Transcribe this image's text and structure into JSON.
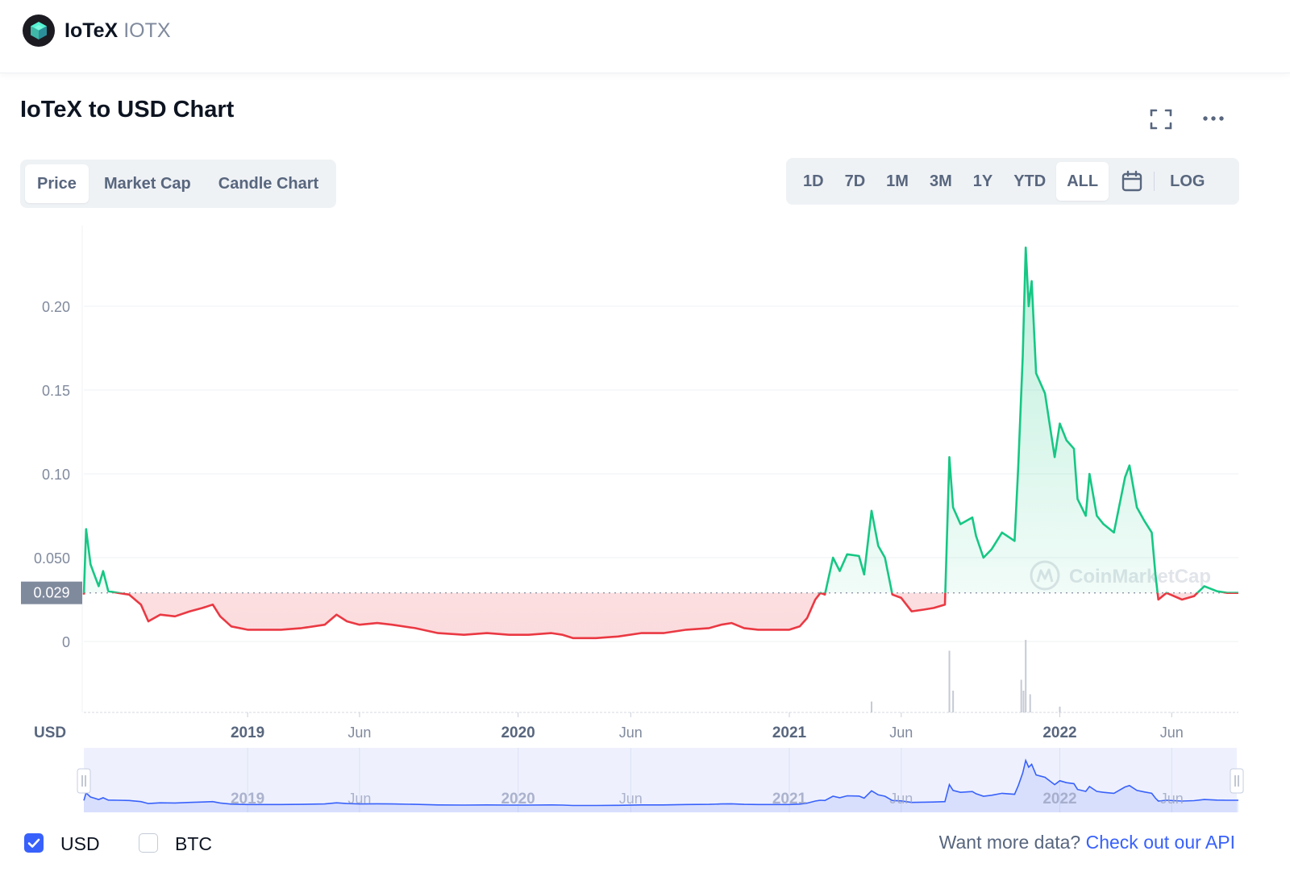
{
  "header": {
    "coin_name": "IoTeX",
    "coin_symbol": "IOTX",
    "logo_icon": "iotex-cube-logo-icon"
  },
  "chart_section": {
    "title": "IoTeX to USD Chart",
    "fullscreen_icon": "fullscreen-icon",
    "more_icon": "more-horizontal-icon"
  },
  "tabs": [
    {
      "label": "Price",
      "active": true
    },
    {
      "label": "Market Cap",
      "active": false
    },
    {
      "label": "Candle Chart",
      "active": false
    }
  ],
  "ranges": [
    {
      "label": "1D",
      "active": false
    },
    {
      "label": "7D",
      "active": false
    },
    {
      "label": "1M",
      "active": false
    },
    {
      "label": "3M",
      "active": false
    },
    {
      "label": "1Y",
      "active": false
    },
    {
      "label": "YTD",
      "active": false
    },
    {
      "label": "ALL",
      "active": true
    }
  ],
  "range_calendar_icon": "calendar-icon",
  "log_label": "LOG",
  "colors": {
    "up": "#16c784",
    "down": "#ea3943",
    "navigator": "#3861fb",
    "accent": "#3861fb"
  },
  "chart_data": {
    "type": "line",
    "currency_label": "USD",
    "current_price_label": "0.029",
    "baseline": 0.029,
    "y_ticks": [
      "0",
      "0.050",
      "0.10",
      "0.15",
      "0.20"
    ],
    "ylim": [
      0,
      0.25
    ],
    "x_ticks": [
      {
        "label": "2019",
        "date": "2019-01-01",
        "kind": "year"
      },
      {
        "label": "Jun",
        "date": "2019-06-01",
        "kind": "month"
      },
      {
        "label": "2020",
        "date": "2020-01-01",
        "kind": "year"
      },
      {
        "label": "Jun",
        "date": "2020-06-01",
        "kind": "month"
      },
      {
        "label": "2021",
        "date": "2021-01-01",
        "kind": "year"
      },
      {
        "label": "Jun",
        "date": "2021-06-01",
        "kind": "month"
      },
      {
        "label": "2022",
        "date": "2022-01-01",
        "kind": "year"
      },
      {
        "label": "Jun",
        "date": "2022-06-01",
        "kind": "month"
      }
    ],
    "xlim": [
      "2018-05-25",
      "2022-08-30"
    ],
    "series": [
      {
        "points": [
          [
            "2018-05-25",
            0.028
          ],
          [
            "2018-05-28",
            0.067
          ],
          [
            "2018-06-03",
            0.046
          ],
          [
            "2018-06-08",
            0.04
          ],
          [
            "2018-06-14",
            0.033
          ],
          [
            "2018-06-20",
            0.042
          ],
          [
            "2018-06-27",
            0.03
          ],
          [
            "2018-07-10",
            0.029
          ],
          [
            "2018-07-25",
            0.028
          ],
          [
            "2018-08-10",
            0.022
          ],
          [
            "2018-08-20",
            0.012
          ],
          [
            "2018-09-05",
            0.016
          ],
          [
            "2018-09-25",
            0.015
          ],
          [
            "2018-10-15",
            0.018
          ],
          [
            "2018-11-01",
            0.02
          ],
          [
            "2018-11-15",
            0.022
          ],
          [
            "2018-11-25",
            0.015
          ],
          [
            "2018-12-10",
            0.009
          ],
          [
            "2019-01-01",
            0.007
          ],
          [
            "2019-02-15",
            0.007
          ],
          [
            "2019-03-15",
            0.008
          ],
          [
            "2019-04-15",
            0.01
          ],
          [
            "2019-05-01",
            0.016
          ],
          [
            "2019-05-15",
            0.012
          ],
          [
            "2019-06-01",
            0.01
          ],
          [
            "2019-06-25",
            0.011
          ],
          [
            "2019-07-15",
            0.01
          ],
          [
            "2019-08-15",
            0.008
          ],
          [
            "2019-09-15",
            0.005
          ],
          [
            "2019-10-20",
            0.004
          ],
          [
            "2019-11-20",
            0.005
          ],
          [
            "2019-12-20",
            0.004
          ],
          [
            "2020-01-15",
            0.004
          ],
          [
            "2020-02-15",
            0.005
          ],
          [
            "2020-03-01",
            0.004
          ],
          [
            "2020-03-15",
            0.002
          ],
          [
            "2020-04-15",
            0.002
          ],
          [
            "2020-05-15",
            0.003
          ],
          [
            "2020-06-15",
            0.005
          ],
          [
            "2020-07-15",
            0.005
          ],
          [
            "2020-08-15",
            0.007
          ],
          [
            "2020-09-15",
            0.008
          ],
          [
            "2020-10-01",
            0.01
          ],
          [
            "2020-10-15",
            0.011
          ],
          [
            "2020-11-01",
            0.008
          ],
          [
            "2020-11-20",
            0.007
          ],
          [
            "2020-12-10",
            0.007
          ],
          [
            "2021-01-01",
            0.007
          ],
          [
            "2021-01-15",
            0.009
          ],
          [
            "2021-01-25",
            0.014
          ],
          [
            "2021-02-05",
            0.025
          ],
          [
            "2021-02-12",
            0.029
          ],
          [
            "2021-02-18",
            0.028
          ],
          [
            "2021-03-01",
            0.05
          ],
          [
            "2021-03-10",
            0.042
          ],
          [
            "2021-03-20",
            0.052
          ],
          [
            "2021-04-05",
            0.051
          ],
          [
            "2021-04-12",
            0.04
          ],
          [
            "2021-04-22",
            0.078
          ],
          [
            "2021-05-01",
            0.057
          ],
          [
            "2021-05-10",
            0.05
          ],
          [
            "2021-05-20",
            0.028
          ],
          [
            "2021-06-01",
            0.026
          ],
          [
            "2021-06-15",
            0.018
          ],
          [
            "2021-07-01",
            0.019
          ],
          [
            "2021-07-15",
            0.02
          ],
          [
            "2021-07-30",
            0.022
          ],
          [
            "2021-08-05",
            0.11
          ],
          [
            "2021-08-10",
            0.08
          ],
          [
            "2021-08-20",
            0.07
          ],
          [
            "2021-09-05",
            0.074
          ],
          [
            "2021-09-10",
            0.063
          ],
          [
            "2021-09-20",
            0.05
          ],
          [
            "2021-10-01",
            0.055
          ],
          [
            "2021-10-15",
            0.065
          ],
          [
            "2021-11-01",
            0.06
          ],
          [
            "2021-11-06",
            0.105
          ],
          [
            "2021-11-12",
            0.17
          ],
          [
            "2021-11-16",
            0.235
          ],
          [
            "2021-11-20",
            0.2
          ],
          [
            "2021-11-24",
            0.215
          ],
          [
            "2021-11-30",
            0.16
          ],
          [
            "2021-12-05",
            0.155
          ],
          [
            "2021-12-12",
            0.148
          ],
          [
            "2021-12-25",
            0.11
          ],
          [
            "2022-01-01",
            0.13
          ],
          [
            "2022-01-10",
            0.12
          ],
          [
            "2022-01-20",
            0.115
          ],
          [
            "2022-01-25",
            0.085
          ],
          [
            "2022-02-05",
            0.075
          ],
          [
            "2022-02-10",
            0.1
          ],
          [
            "2022-02-20",
            0.075
          ],
          [
            "2022-03-01",
            0.07
          ],
          [
            "2022-03-15",
            0.065
          ],
          [
            "2022-03-30",
            0.098
          ],
          [
            "2022-04-05",
            0.105
          ],
          [
            "2022-04-15",
            0.08
          ],
          [
            "2022-04-25",
            0.072
          ],
          [
            "2022-05-05",
            0.065
          ],
          [
            "2022-05-10",
            0.04
          ],
          [
            "2022-05-14",
            0.025
          ],
          [
            "2022-05-25",
            0.029
          ],
          [
            "2022-06-15",
            0.025
          ],
          [
            "2022-07-01",
            0.027
          ],
          [
            "2022-07-15",
            0.033
          ],
          [
            "2022-08-01",
            0.03
          ],
          [
            "2022-08-15",
            0.029
          ],
          [
            "2022-08-30",
            0.029
          ]
        ]
      }
    ],
    "volume": [
      [
        "2021-04-22",
        0.15
      ],
      [
        "2021-08-05",
        0.85
      ],
      [
        "2021-08-10",
        0.3
      ],
      [
        "2021-11-10",
        0.45
      ],
      [
        "2021-11-13",
        0.3
      ],
      [
        "2021-11-16",
        1.0
      ],
      [
        "2021-11-22",
        0.25
      ],
      [
        "2022-01-01",
        0.08
      ]
    ],
    "watermark": "CoinMarketCap",
    "navigator_ticks": [
      "2019",
      "Jun",
      "2020",
      "Jun",
      "2021",
      "Jun",
      "2022",
      "Jun"
    ]
  },
  "legend": {
    "usd_label": "USD",
    "btc_label": "BTC",
    "usd_checked": true,
    "btc_checked": false,
    "api_prompt": "Want more data?",
    "api_link": "Check out our API"
  }
}
